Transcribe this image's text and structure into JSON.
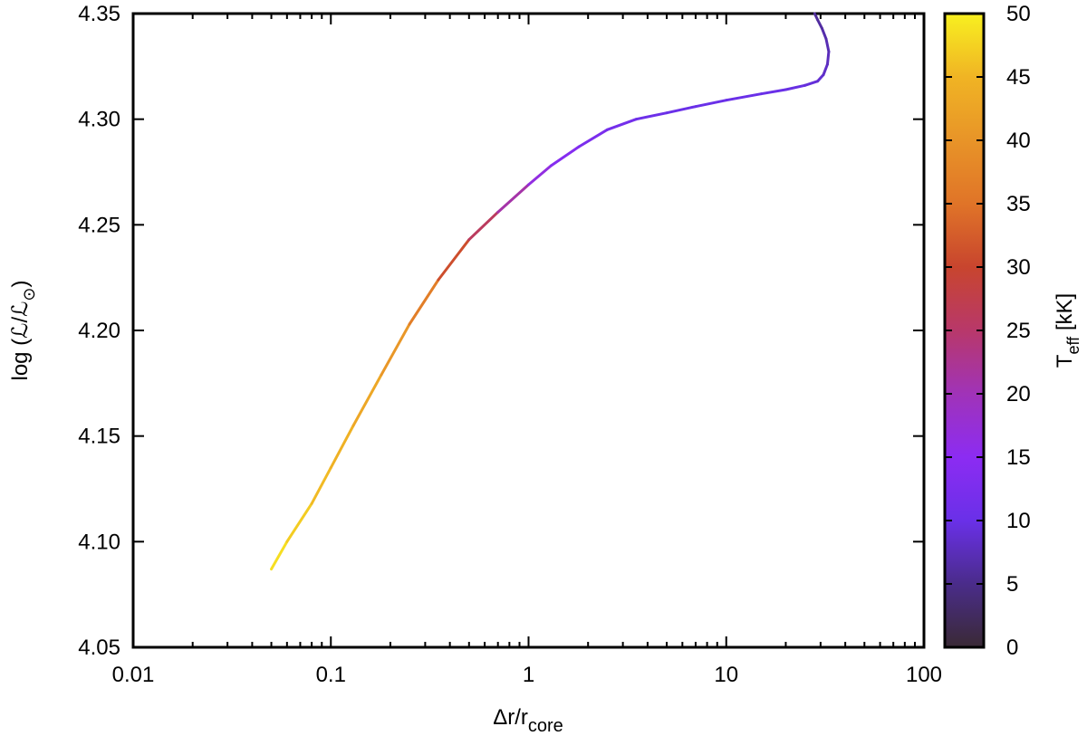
{
  "chart_data": {
    "type": "line",
    "xscale": "log",
    "xlim": [
      0.01,
      100
    ],
    "ylim": [
      4.05,
      4.35
    ],
    "xlabel": "Δr/r",
    "xlabel_subscript": "core",
    "ylabel": "log (ℒ/ℒ",
    "ylabel_subscript": "⊙",
    "ylabel_close": ")",
    "x_ticks": [
      0.01,
      0.1,
      1,
      10,
      100
    ],
    "x_tick_labels": [
      "0.01",
      "0.1",
      "1",
      "10",
      "100"
    ],
    "y_ticks": [
      4.05,
      4.1,
      4.15,
      4.2,
      4.25,
      4.3,
      4.35
    ],
    "y_tick_labels": [
      "4.05",
      "4.10",
      "4.15",
      "4.20",
      "4.25",
      "4.30",
      "4.35"
    ],
    "grid": false,
    "legend": false,
    "colorbar": {
      "label": "T",
      "label_subscript": "eff",
      "label_suffix": " [kK]",
      "range": [
        0,
        50
      ],
      "ticks": [
        0,
        5,
        10,
        15,
        20,
        25,
        30,
        35,
        40,
        45,
        50
      ],
      "tick_labels": [
        "0",
        "5",
        "10",
        "15",
        "20",
        "25",
        "30",
        "35",
        "40",
        "45",
        "50"
      ],
      "palette": [
        {
          "v": 0,
          "color": "#3a2a35"
        },
        {
          "v": 5,
          "color": "#4a2c8a"
        },
        {
          "v": 10,
          "color": "#6a30e8"
        },
        {
          "v": 15,
          "color": "#8c2cf2"
        },
        {
          "v": 20,
          "color": "#a033b8"
        },
        {
          "v": 25,
          "color": "#b8386a"
        },
        {
          "v": 30,
          "color": "#c8452e"
        },
        {
          "v": 35,
          "color": "#e07428"
        },
        {
          "v": 40,
          "color": "#e89428"
        },
        {
          "v": 45,
          "color": "#f0b424"
        },
        {
          "v": 50,
          "color": "#f8f020"
        }
      ]
    },
    "series": [
      {
        "x": [
          0.05,
          0.06,
          0.08,
          0.1,
          0.13,
          0.18,
          0.25,
          0.35,
          0.5,
          0.7,
          1.0,
          1.3,
          1.8,
          2.5,
          3.5,
          5.0,
          7.0,
          10.0,
          15.0,
          20.0,
          25.0,
          29.0,
          31.0,
          32.5,
          33.0,
          32.0,
          30.5,
          29.0,
          28.0
        ],
        "y": [
          4.087,
          4.1,
          4.118,
          4.135,
          4.155,
          4.179,
          4.203,
          4.224,
          4.243,
          4.256,
          4.269,
          4.278,
          4.287,
          4.295,
          4.3,
          4.303,
          4.306,
          4.309,
          4.312,
          4.314,
          4.316,
          4.318,
          4.321,
          4.326,
          4.332,
          4.338,
          4.343,
          4.347,
          4.35
        ],
        "teff": [
          49,
          48,
          46,
          45,
          44,
          42,
          39,
          34,
          28,
          24,
          18,
          15,
          13,
          12,
          11,
          10,
          10,
          10,
          10,
          10,
          9.5,
          9,
          8.5,
          8,
          7.5,
          7,
          6.5,
          6,
          5.5
        ]
      }
    ]
  }
}
